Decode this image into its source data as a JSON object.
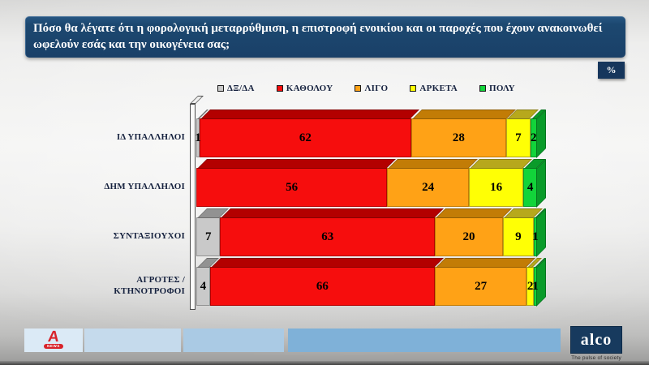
{
  "title": "Πόσο θα λέγατε ότι η φορολογική μεταρρύθμιση, η επιστροφή ενοικίου και  οι παροχές που έχουν ανακοινωθεί ωφελούν εσάς  και την οικογένεια σας;",
  "percent_badge": "%",
  "chart_data": {
    "type": "bar",
    "orientation": "horizontal",
    "stacked": true,
    "unit": "%",
    "xlim": [
      0,
      100
    ],
    "legend_position": "top",
    "categories": [
      "ΙΔ ΥΠΑΛΛΗΛΟΙ",
      "ΔΗΜ ΥΠΑΛΛΗΛΟΙ",
      "ΣΥΝΤΑΞΙΟΥΧΟΙ",
      "ΑΓΡΟΤΕΣ /\nΚΤΗΝΟΤΡΟΦΟΙ"
    ],
    "series": [
      {
        "key": "dxda",
        "name": "ΔΞ/ΔΑ",
        "color": "#c9c9c9",
        "dark": "#929292",
        "values": [
          1,
          0,
          7,
          4
        ]
      },
      {
        "key": "katholou",
        "name": "ΚΑΘΟΛΟΥ",
        "color": "#f60d0d",
        "dark": "#b30000",
        "values": [
          62,
          56,
          63,
          66
        ]
      },
      {
        "key": "ligo",
        "name": "ΛΙΓΟ",
        "color": "#ffa216",
        "dark": "#c27c06",
        "values": [
          28,
          24,
          20,
          27
        ]
      },
      {
        "key": "arketa",
        "name": "ΑΡΚΕΤΑ",
        "color": "#ffff05",
        "dark": "#b7a81c",
        "values": [
          7,
          16,
          9,
          2
        ]
      },
      {
        "key": "poly",
        "name": "ΠΟΛΥ",
        "color": "#12d43a",
        "dark": "#0a9b2a",
        "values": [
          2,
          4,
          1,
          1
        ]
      }
    ]
  },
  "footer": {
    "alpha_letter": "A",
    "alpha_news": "NEWS",
    "alco": "alco",
    "tagline": "The pulse of society"
  },
  "colors": {
    "title_bg": "#1c4870",
    "badge_bg": "#16365c",
    "alco_bg": "#173a5e",
    "alpha_red": "#d8232a",
    "value_text": "#000000",
    "label_text": "#16223f"
  }
}
